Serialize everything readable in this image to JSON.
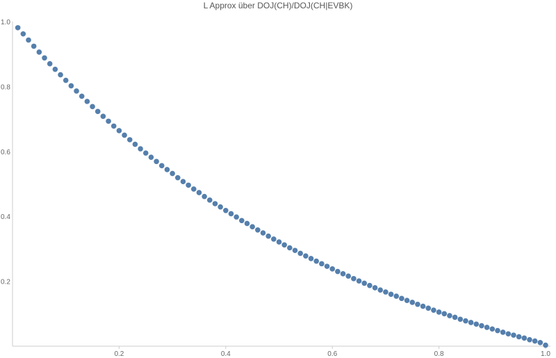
{
  "chart_data": {
    "type": "scatter",
    "title": "L Approx über DOJ(CH)/DOJ(CH|EVBK)",
    "xlabel": "",
    "ylabel": "",
    "xlim": [
      0,
      1.0
    ],
    "ylim": [
      0,
      1.0
    ],
    "grid": false,
    "legend": "none",
    "x_ticks": [
      {
        "value": 0.2,
        "label": "0.2"
      },
      {
        "value": 0.4,
        "label": "0.4"
      },
      {
        "value": 0.6,
        "label": "0.6"
      },
      {
        "value": 0.8,
        "label": "0.8"
      },
      {
        "value": 1.0,
        "label": "1.0"
      }
    ],
    "y_ticks": [
      {
        "value": 0.2,
        "label": "0.2"
      },
      {
        "value": 0.4,
        "label": "0.4"
      },
      {
        "value": 0.6,
        "label": "0.6"
      },
      {
        "value": 0.8,
        "label": "0.8"
      },
      {
        "value": 1.0,
        "label": "1.0"
      }
    ],
    "series": [
      {
        "color": "#4c78a8",
        "x": [
          0.01,
          0.02,
          0.03,
          0.04,
          0.05,
          0.06,
          0.07,
          0.08,
          0.09,
          0.1,
          0.11,
          0.12,
          0.13,
          0.14,
          0.15,
          0.16,
          0.17,
          0.18,
          0.19,
          0.2,
          0.21,
          0.22,
          0.23,
          0.24,
          0.25,
          0.26,
          0.27,
          0.28,
          0.29,
          0.3,
          0.31,
          0.32,
          0.33,
          0.34,
          0.35,
          0.36,
          0.37,
          0.38,
          0.39,
          0.4,
          0.41,
          0.42,
          0.43,
          0.44,
          0.45,
          0.46,
          0.47,
          0.48,
          0.49,
          0.5,
          0.51,
          0.52,
          0.53,
          0.54,
          0.55,
          0.56,
          0.57,
          0.58,
          0.59,
          0.6,
          0.61,
          0.62,
          0.63,
          0.64,
          0.65,
          0.66,
          0.67,
          0.68,
          0.69,
          0.7,
          0.71,
          0.72,
          0.73,
          0.74,
          0.75,
          0.76,
          0.77,
          0.78,
          0.79,
          0.8,
          0.81,
          0.82,
          0.83,
          0.84,
          0.85,
          0.86,
          0.87,
          0.88,
          0.89,
          0.9,
          0.91,
          0.92,
          0.93,
          0.94,
          0.95,
          0.96,
          0.97,
          0.98,
          0.99,
          1.0
        ],
        "y": [
          0.981,
          0.962,
          0.943,
          0.924,
          0.906,
          0.888,
          0.87,
          0.853,
          0.836,
          0.819,
          0.802,
          0.786,
          0.77,
          0.754,
          0.738,
          0.723,
          0.708,
          0.693,
          0.678,
          0.664,
          0.65,
          0.636,
          0.622,
          0.608,
          0.595,
          0.582,
          0.569,
          0.556,
          0.544,
          0.532,
          0.519,
          0.507,
          0.496,
          0.484,
          0.473,
          0.461,
          0.45,
          0.439,
          0.429,
          0.418,
          0.408,
          0.398,
          0.387,
          0.378,
          0.368,
          0.358,
          0.349,
          0.339,
          0.33,
          0.321,
          0.312,
          0.303,
          0.295,
          0.286,
          0.278,
          0.27,
          0.262,
          0.254,
          0.246,
          0.238,
          0.23,
          0.223,
          0.216,
          0.208,
          0.201,
          0.194,
          0.187,
          0.18,
          0.173,
          0.167,
          0.16,
          0.154,
          0.147,
          0.141,
          0.135,
          0.129,
          0.123,
          0.117,
          0.111,
          0.105,
          0.1,
          0.094,
          0.089,
          0.083,
          0.078,
          0.073,
          0.068,
          0.063,
          0.058,
          0.053,
          0.048,
          0.043,
          0.038,
          0.034,
          0.029,
          0.025,
          0.02,
          0.016,
          0.011,
          0.003
        ]
      }
    ]
  }
}
